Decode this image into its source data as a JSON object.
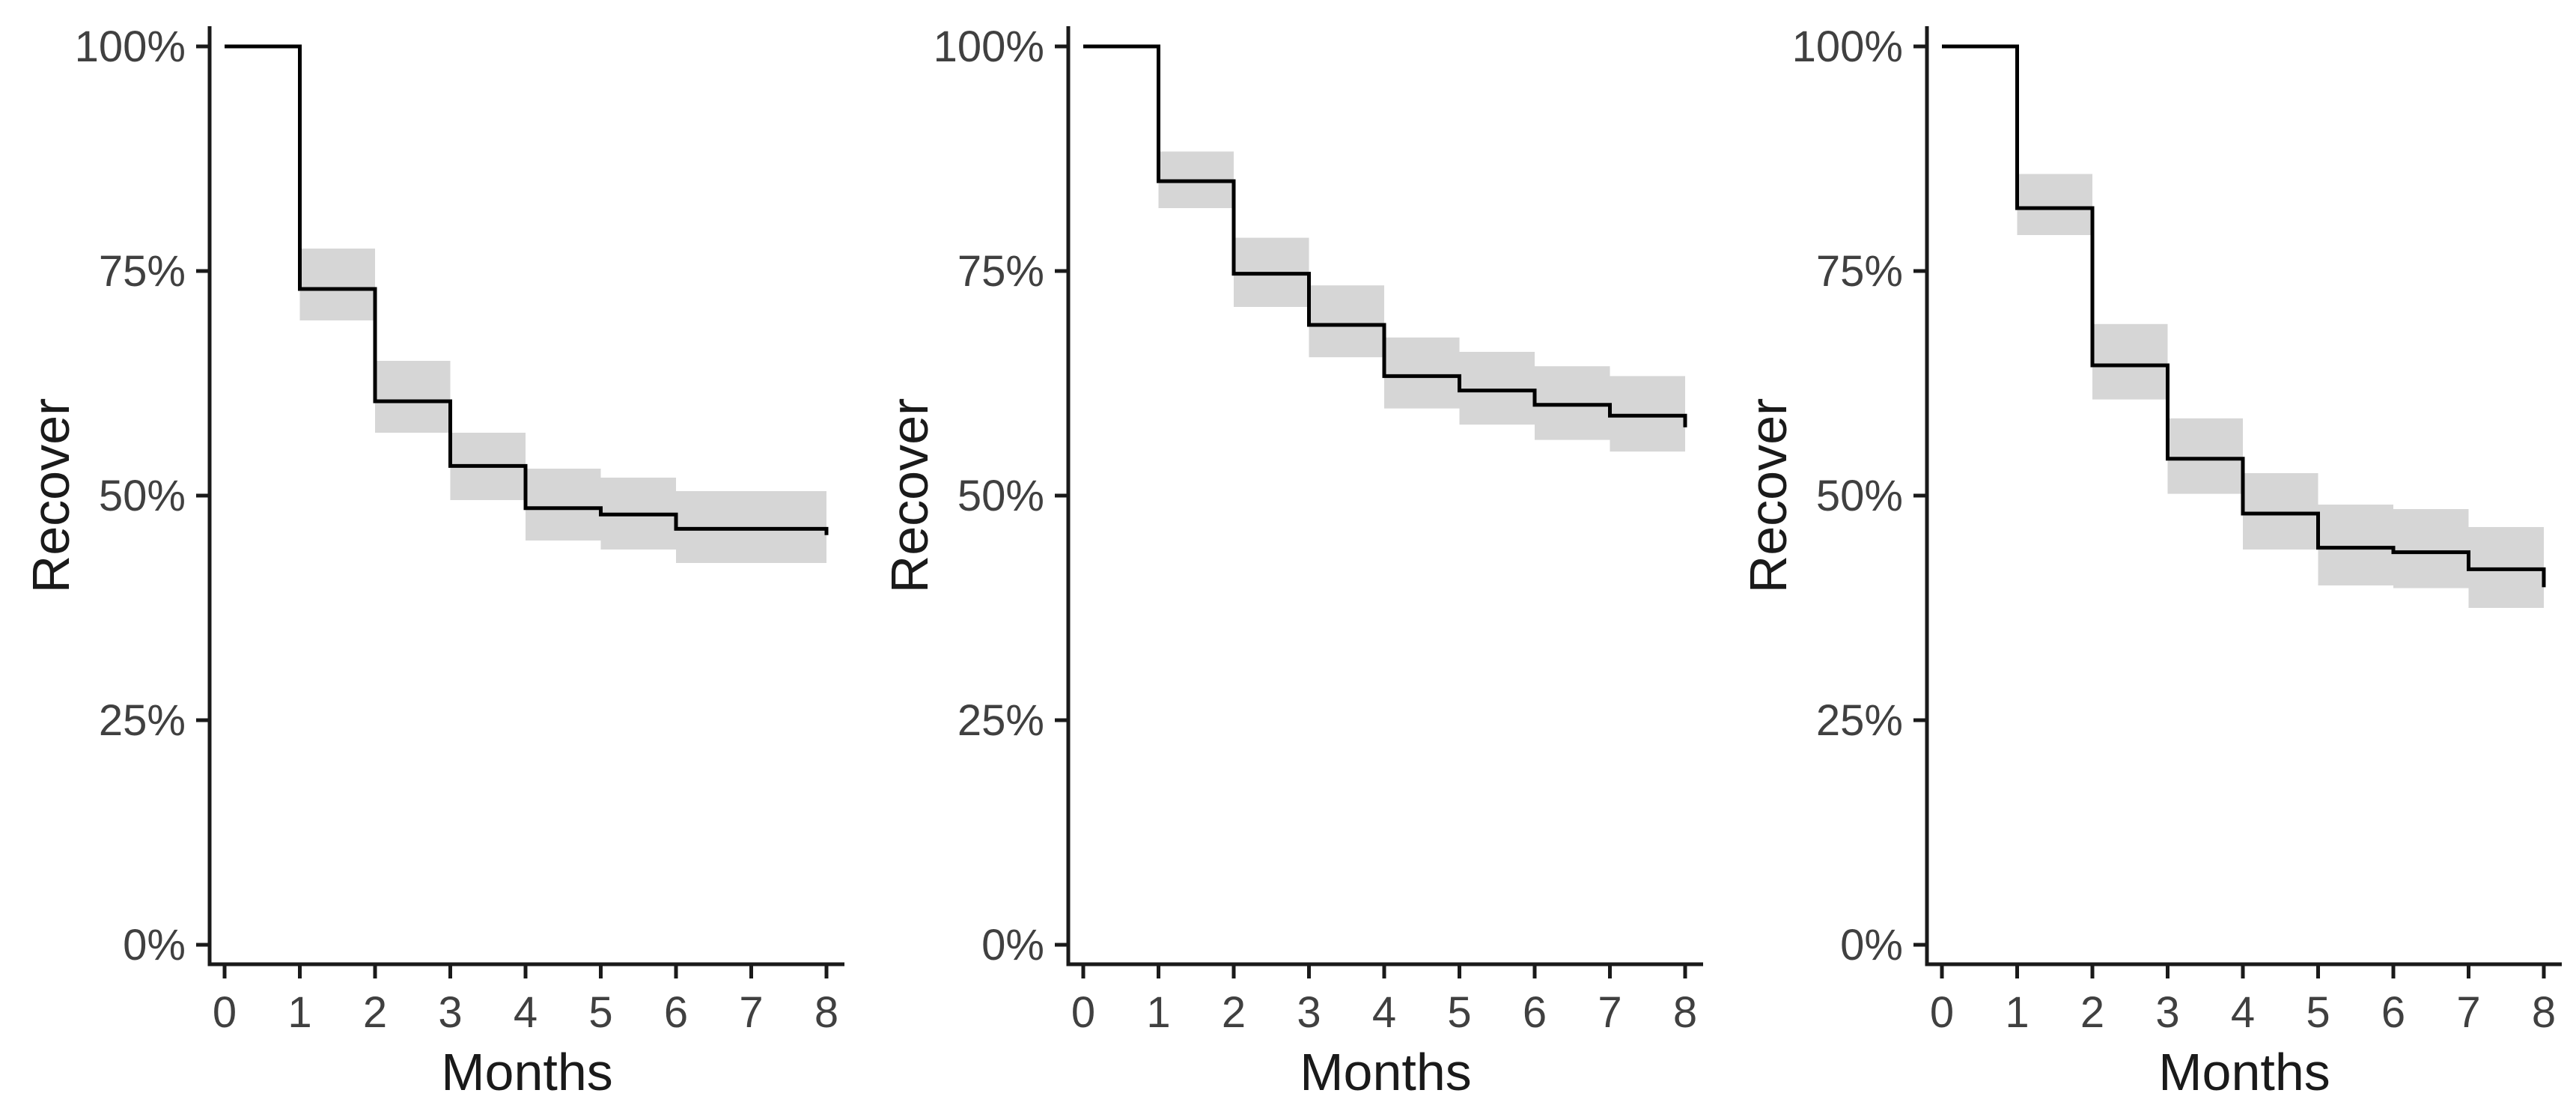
{
  "figure": {
    "background": "#ffffff",
    "panels_count": 3
  },
  "style": {
    "curve_color": "#000000",
    "band_color": "#d6d6d6",
    "axis_color": "#1a1a1a",
    "tick_label_color": "#404040",
    "title_color": "#1a1a1a"
  },
  "chart_data": [
    {
      "panel": "left",
      "type": "line",
      "subtype": "kaplan-meier-step",
      "title": "",
      "xlabel": "Months",
      "ylabel": "Recover",
      "xlim": [
        0,
        8
      ],
      "ylim": [
        0,
        100
      ],
      "grid": false,
      "legend": "none",
      "x_tick_labels": [
        "0",
        "1",
        "2",
        "3",
        "4",
        "5",
        "6",
        "7",
        "8"
      ],
      "y_tick_labels": [
        "0%",
        "25%",
        "50%",
        "75%",
        "100%"
      ],
      "y_tick_values": [
        0,
        25,
        50,
        75,
        100
      ],
      "steps_ts": [
        [
          0,
          100
        ],
        [
          1,
          73
        ],
        [
          2,
          60.5
        ],
        [
          3,
          53.3
        ],
        [
          4,
          48.6
        ],
        [
          5,
          47.9
        ],
        [
          6,
          46.3
        ],
        [
          8,
          45.6
        ]
      ],
      "ci_bands": [
        [
          1,
          2,
          69.5,
          77.5
        ],
        [
          2,
          3,
          57.0,
          65.0
        ],
        [
          3,
          4,
          49.5,
          57.0
        ],
        [
          4,
          5,
          45.0,
          53.0
        ],
        [
          5,
          6,
          44.0,
          52.0
        ],
        [
          6,
          8,
          42.5,
          50.5
        ]
      ]
    },
    {
      "panel": "middle",
      "type": "line",
      "subtype": "kaplan-meier-step",
      "title": "",
      "xlabel": "Months",
      "ylabel": "Recover",
      "xlim": [
        0,
        8
      ],
      "ylim": [
        0,
        100
      ],
      "grid": false,
      "legend": "none",
      "x_tick_labels": [
        "0",
        "1",
        "2",
        "3",
        "4",
        "5",
        "6",
        "7",
        "8"
      ],
      "y_tick_labels": [
        "0%",
        "25%",
        "50%",
        "75%",
        "100%"
      ],
      "y_tick_values": [
        0,
        25,
        50,
        75,
        100
      ],
      "steps_ts": [
        [
          0,
          100
        ],
        [
          1,
          85
        ],
        [
          2,
          74.7
        ],
        [
          3,
          69
        ],
        [
          4,
          63.3
        ],
        [
          5,
          61.7
        ],
        [
          6,
          60.1
        ],
        [
          7,
          58.9
        ],
        [
          8,
          57.6
        ]
      ],
      "ci_bands": [
        [
          1,
          2,
          82.0,
          88.3
        ],
        [
          2,
          3,
          71.0,
          78.7
        ],
        [
          3,
          4,
          65.4,
          73.4
        ],
        [
          4,
          5,
          59.7,
          67.6
        ],
        [
          5,
          6,
          57.9,
          66.0
        ],
        [
          6,
          7,
          56.2,
          64.4
        ],
        [
          7,
          8,
          54.9,
          63.3
        ]
      ]
    },
    {
      "panel": "right",
      "type": "line",
      "subtype": "kaplan-meier-step",
      "title": "",
      "xlabel": "Months",
      "ylabel": "Recover",
      "xlim": [
        0,
        8
      ],
      "ylim": [
        0,
        100
      ],
      "grid": false,
      "legend": "none",
      "x_tick_labels": [
        "0",
        "1",
        "2",
        "3",
        "4",
        "5",
        "6",
        "7",
        "8"
      ],
      "y_tick_labels": [
        "0%",
        "25%",
        "50%",
        "75%",
        "100%"
      ],
      "y_tick_values": [
        0,
        25,
        50,
        75,
        100
      ],
      "steps_ts": [
        [
          0,
          100
        ],
        [
          1,
          82
        ],
        [
          2,
          64.5
        ],
        [
          3,
          54.1
        ],
        [
          4,
          48
        ],
        [
          5,
          44.2
        ],
        [
          6,
          43.7
        ],
        [
          7,
          41.8
        ],
        [
          8,
          39.8
        ]
      ],
      "ci_bands": [
        [
          1,
          2,
          79.0,
          85.8
        ],
        [
          2,
          3,
          60.7,
          69.1
        ],
        [
          3,
          4,
          50.2,
          58.6
        ],
        [
          4,
          5,
          44.0,
          52.5
        ],
        [
          5,
          6,
          40.0,
          49.0
        ],
        [
          6,
          7,
          39.7,
          48.5
        ],
        [
          7,
          8,
          37.5,
          46.5
        ]
      ]
    }
  ]
}
